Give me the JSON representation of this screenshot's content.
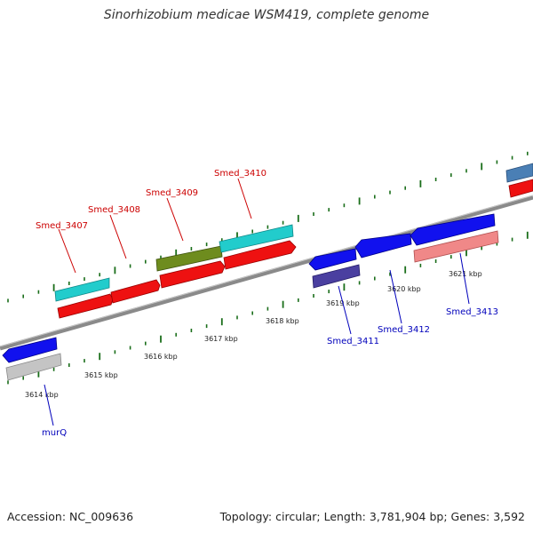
{
  "title": "Sinorhizobium medicae WSM419, complete genome",
  "footer": {
    "accession": "Accession: NC_009636",
    "summary": "Topology: circular; Length: 3,781,904 bp; Genes: 3,592"
  },
  "colors": {
    "forward_label": "#cc0000",
    "reverse_label": "#0000bb",
    "backbone": "#8a8a8a",
    "ticks": "#1a6e1a"
  },
  "kbp_labels": [
    "3614 kbp",
    "3615 kbp",
    "3616 kbp",
    "3617 kbp",
    "3618 kbp",
    "3619 kbp",
    "3620 kbp",
    "3621 kbp"
  ],
  "gene_labels": {
    "smed_3407": "Smed_3407",
    "smed_3408": "Smed_3408",
    "smed_3409": "Smed_3409",
    "smed_3410": "Smed_3410",
    "smed_3411": "Smed_3411",
    "smed_3412": "Smed_3412",
    "smed_3413": "Smed_3413",
    "murq": "murQ"
  }
}
